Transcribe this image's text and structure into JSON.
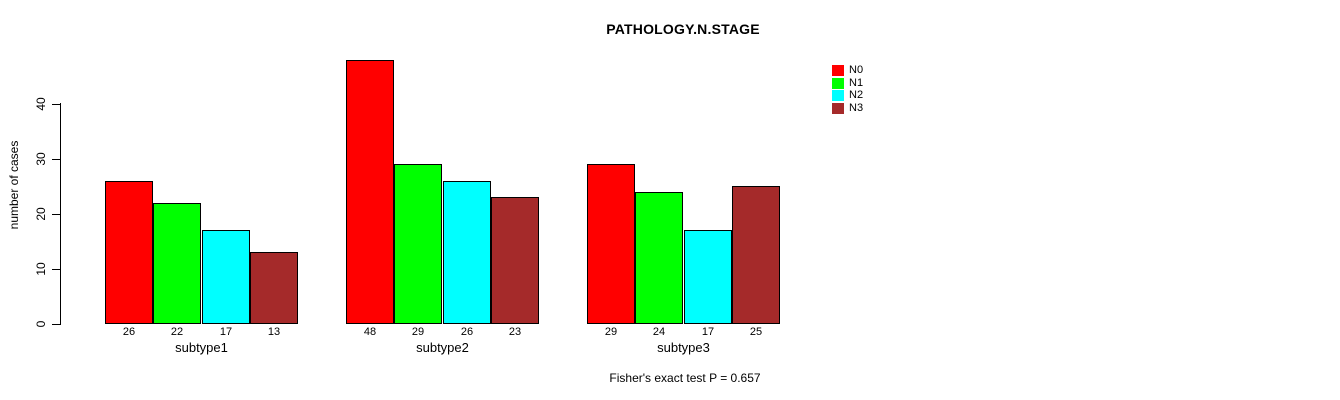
{
  "chart_data": {
    "type": "bar",
    "title": "PATHOLOGY.N.STAGE",
    "ylabel": "number of cases",
    "xlabel": "",
    "categories": [
      "subtype1",
      "subtype2",
      "subtype3"
    ],
    "series": [
      {
        "name": "N0",
        "color": "#ff0000",
        "values": [
          26,
          48,
          29
        ]
      },
      {
        "name": "N1",
        "color": "#00ff00",
        "values": [
          22,
          29,
          24
        ]
      },
      {
        "name": "N2",
        "color": "#00ffff",
        "values": [
          17,
          26,
          17
        ]
      },
      {
        "name": "N3",
        "color": "#a52a2a",
        "values": [
          13,
          23,
          25
        ]
      }
    ],
    "bar_value_labels": [
      [
        26,
        22,
        17,
        13
      ],
      [
        48,
        29,
        26,
        23
      ],
      [
        29,
        24,
        17,
        25
      ]
    ],
    "yticks": [
      0,
      10,
      20,
      30,
      40
    ],
    "ylim": [
      0,
      48
    ],
    "grid": false,
    "legend_position": "top-right",
    "bar_border_color": "#000000",
    "axis_color": "#000000",
    "caption": "Fisher's exact test P = 0.657"
  }
}
